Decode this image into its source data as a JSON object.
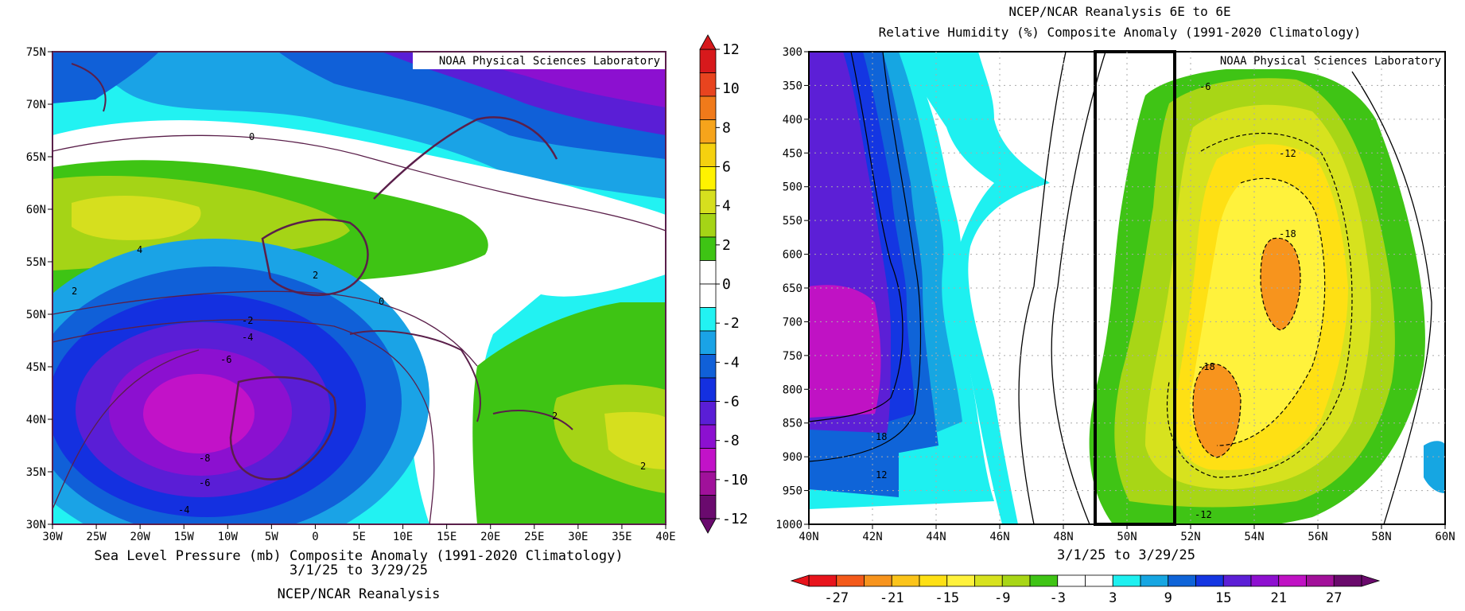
{
  "left_panel": {
    "credit": "NOAA Physical Sciences Laboratory",
    "caption": "Sea Level Pressure (mb) Composite Anomaly (1991-2020 Climatology)",
    "dates": "3/1/25  to 3/29/25",
    "source": "NCEP/NCAR Reanalysis"
  },
  "right_panel": {
    "title": "NCEP/NCAR Reanalysis 6E to 6E",
    "subtitle": "Relative Humidity (%) Composite Anomaly (1991-2020 Climatology)",
    "credit": "NOAA Physical Sciences Laboratory",
    "dates": "3/1/25  to 3/29/25"
  },
  "colors": {
    "frame": "#000000",
    "map_border": "#5a1f4a",
    "highlight_box": "#000000"
  },
  "chart_data": [
    {
      "type": "heatmap",
      "title": "Sea Level Pressure (mb) Composite Anomaly (1991-2020 Climatology)",
      "xlabel": "",
      "ylabel": "",
      "x_ticks": [
        "30W",
        "25W",
        "20W",
        "15W",
        "10W",
        "5W",
        "0",
        "5E",
        "10E",
        "15E",
        "20E",
        "25E",
        "30E",
        "35E",
        "40E"
      ],
      "y_ticks": [
        "30N",
        "35N",
        "40N",
        "45N",
        "50N",
        "55N",
        "60N",
        "65N",
        "70N",
        "75N"
      ],
      "xlim": [
        -30,
        40
      ],
      "ylim": [
        30,
        75
      ],
      "colorbar": {
        "orientation": "vertical",
        "labels": [
          "12",
          "10",
          "8",
          "6",
          "4",
          "2",
          "0",
          "-2",
          "-4",
          "-6",
          "-8",
          "-10",
          "-12"
        ],
        "colors": [
          "#d7191c",
          "#e8441f",
          "#f07a1a",
          "#f6a41b",
          "#f5d10f",
          "#fff200",
          "#d6df1e",
          "#a5d416",
          "#3ec414",
          "#ffffff",
          "#ffffff",
          "#22f2f2",
          "#1aa3e6",
          "#1060d8",
          "#1430e0",
          "#5a1ed6",
          "#8c10d0",
          "#c212c8",
          "#a0119a",
          "#6a0a6e"
        ]
      },
      "contour_labels": [
        "0",
        "4",
        "2",
        "2",
        "0",
        "-2",
        "-4",
        "-6",
        "-8",
        "-6",
        "-4",
        "2",
        "2"
      ],
      "features": [
        {
          "name": "low center",
          "lon": -13,
          "lat": 41,
          "value": -10
        },
        {
          "name": "high center",
          "lon": -18,
          "lat": 58,
          "value": 5
        },
        {
          "name": "high center",
          "lon": 32,
          "lat": 38,
          "value": 3
        }
      ]
    },
    {
      "type": "heatmap",
      "title": "Relative Humidity (%) Composite Anomaly (1991-2020 Climatology)",
      "xlabel": "",
      "ylabel": "",
      "x_ticks": [
        "40N",
        "42N",
        "44N",
        "46N",
        "48N",
        "50N",
        "52N",
        "54N",
        "56N",
        "58N",
        "60N"
      ],
      "y_ticks": [
        "300",
        "350",
        "400",
        "450",
        "500",
        "550",
        "600",
        "650",
        "700",
        "750",
        "800",
        "850",
        "900",
        "950",
        "1000"
      ],
      "xlim": [
        40,
        60
      ],
      "ylim": [
        1000,
        300
      ],
      "highlight_box": {
        "x": [
          49.0,
          51.5
        ],
        "y": [
          1000,
          300
        ]
      },
      "colorbar": {
        "orientation": "horizontal",
        "labels": [
          "-27",
          "-21",
          "-15",
          "-9",
          "-3",
          "3",
          "9",
          "15",
          "21",
          "27"
        ],
        "colors": [
          "#e8141c",
          "#f45a1a",
          "#f7941d",
          "#fbc41a",
          "#fee014",
          "#fff23c",
          "#d7e21e",
          "#a8d616",
          "#3fc415",
          "#ffffff",
          "#ffffff",
          "#1ef0f0",
          "#16a6e2",
          "#0f64d8",
          "#1436e2",
          "#5c1fd6",
          "#8e10d0",
          "#c012c4",
          "#a2109a",
          "#6a0a6c"
        ]
      },
      "contour_labels": [
        "-6",
        "-12",
        "-18",
        "-18",
        "-12",
        "18",
        "12"
      ],
      "features": [
        {
          "name": "dry center",
          "lat": 52.5,
          "level": 850,
          "value": -21
        },
        {
          "name": "dry center",
          "lat": 55,
          "level": 630,
          "value": -21
        },
        {
          "name": "moist center",
          "lat": 41.5,
          "level": 740,
          "value": 24
        }
      ]
    }
  ]
}
